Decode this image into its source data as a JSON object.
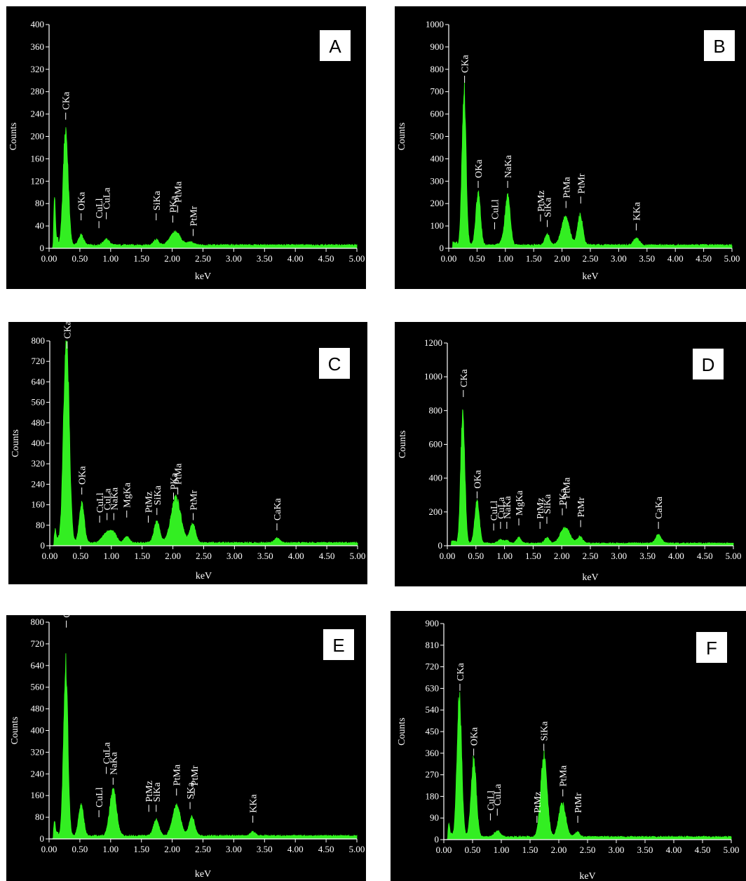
{
  "chart_data": [
    {
      "type": "area",
      "panel": "A",
      "xlabel": "keV",
      "ylabel": "Counts",
      "xlim": [
        0,
        5
      ],
      "ylim": [
        0,
        400
      ],
      "xticks": [
        "0.00",
        "0.50",
        "1.00",
        "1.50",
        "2.00",
        "2.50",
        "3.00",
        "3.50",
        "4.00",
        "4.50",
        "5.00"
      ],
      "yticks": [
        "0",
        "40",
        "80",
        "120",
        "160",
        "200",
        "240",
        "280",
        "320",
        "360",
        "400"
      ],
      "baseline": 4,
      "peaks": [
        {
          "x": 0.09,
          "h": 75,
          "w": 0.012
        },
        {
          "x": 0.27,
          "h": 210,
          "w": 0.04
        },
        {
          "x": 0.52,
          "h": 18,
          "w": 0.04
        },
        {
          "x": 0.93,
          "h": 10,
          "w": 0.05
        },
        {
          "x": 1.74,
          "h": 10,
          "w": 0.04
        },
        {
          "x": 2.05,
          "h": 24,
          "w": 0.08
        },
        {
          "x": 2.3,
          "h": 5,
          "w": 0.05
        }
      ],
      "annotations": [
        {
          "label": "CKa",
          "x": 0.27,
          "y": 230
        },
        {
          "label": "OKa",
          "x": 0.52,
          "y": 50
        },
        {
          "label": "CuLl",
          "x": 0.81,
          "y": 36
        },
        {
          "label": "CuLa",
          "x": 0.93,
          "y": 52
        },
        {
          "label": "SiKa",
          "x": 1.74,
          "y": 50
        },
        {
          "label": "PKa",
          "x": 2.01,
          "y": 46
        },
        {
          "label": "PtMa",
          "x": 2.09,
          "y": 64
        },
        {
          "label": "PtMr",
          "x": 2.34,
          "y": 22
        }
      ]
    },
    {
      "type": "area",
      "panel": "B",
      "xlabel": "keV",
      "ylabel": "Counts",
      "xlim": [
        0,
        5
      ],
      "ylim": [
        0,
        1000
      ],
      "xticks": [
        "0.00",
        "0.50",
        "1.00",
        "1.50",
        "2.00",
        "2.50",
        "3.00",
        "3.50",
        "4.00",
        "4.50",
        "5.00"
      ],
      "yticks": [
        "0",
        "100",
        "200",
        "300",
        "400",
        "500",
        "600",
        "700",
        "800",
        "900",
        "1000"
      ],
      "baseline": 10,
      "peaks": [
        {
          "x": 0.27,
          "h": 700,
          "w": 0.035
        },
        {
          "x": 0.52,
          "h": 235,
          "w": 0.04
        },
        {
          "x": 0.93,
          "h": 15,
          "w": 0.04
        },
        {
          "x": 1.04,
          "h": 220,
          "w": 0.045
        },
        {
          "x": 1.74,
          "h": 50,
          "w": 0.04
        },
        {
          "x": 2.06,
          "h": 125,
          "w": 0.07
        },
        {
          "x": 2.32,
          "h": 135,
          "w": 0.045
        },
        {
          "x": 3.31,
          "h": 30,
          "w": 0.05
        }
      ],
      "annotations": [
        {
          "label": "CKa",
          "x": 0.28,
          "y": 740
        },
        {
          "label": "OKa",
          "x": 0.52,
          "y": 270
        },
        {
          "label": "CuLl",
          "x": 0.81,
          "y": 85
        },
        {
          "label": "NaKa",
          "x": 1.04,
          "y": 270
        },
        {
          "label": "PtMz",
          "x": 1.62,
          "y": 120
        },
        {
          "label": "SiKa",
          "x": 1.74,
          "y": 95
        },
        {
          "label": "PtMa",
          "x": 2.07,
          "y": 180
        },
        {
          "label": "PtMr",
          "x": 2.33,
          "y": 200
        },
        {
          "label": "KKa",
          "x": 3.31,
          "y": 80
        }
      ]
    },
    {
      "type": "area",
      "panel": "C",
      "xlabel": "keV",
      "ylabel": "Counts",
      "xlim": [
        0,
        5
      ],
      "ylim": [
        0,
        800
      ],
      "xticks": [
        "0.00",
        "0.50",
        "1.00",
        "1.50",
        "2.00",
        "2.50",
        "3.00",
        "3.50",
        "4.00",
        "4.50",
        "5.00"
      ],
      "yticks": [
        "0",
        "80",
        "160",
        "240",
        "320",
        "400",
        "480",
        "560",
        "640",
        "720",
        "800"
      ],
      "baseline": 8,
      "peaks": [
        {
          "x": 0.09,
          "h": 40,
          "w": 0.012
        },
        {
          "x": 0.27,
          "h": 800,
          "w": 0.045
        },
        {
          "x": 0.52,
          "h": 155,
          "w": 0.04
        },
        {
          "x": 0.93,
          "h": 40,
          "w": 0.07
        },
        {
          "x": 1.04,
          "h": 30,
          "w": 0.05
        },
        {
          "x": 1.25,
          "h": 25,
          "w": 0.04
        },
        {
          "x": 1.74,
          "h": 85,
          "w": 0.045
        },
        {
          "x": 2.05,
          "h": 175,
          "w": 0.08
        },
        {
          "x": 2.32,
          "h": 75,
          "w": 0.045
        },
        {
          "x": 3.69,
          "h": 20,
          "w": 0.04
        }
      ],
      "annotations": [
        {
          "label": "CKa",
          "x": 0.28,
          "y": 770
        },
        {
          "label": "OKa",
          "x": 0.52,
          "y": 200
        },
        {
          "label": "CuLl",
          "x": 0.81,
          "y": 90
        },
        {
          "label": "CuLa",
          "x": 0.93,
          "y": 100
        },
        {
          "label": "NaKa",
          "x": 1.04,
          "y": 100
        },
        {
          "label": "MgKa",
          "x": 1.25,
          "y": 110
        },
        {
          "label": "PtMz",
          "x": 1.6,
          "y": 90
        },
        {
          "label": "SiKa",
          "x": 1.74,
          "y": 120
        },
        {
          "label": "PKa",
          "x": 2.01,
          "y": 180
        },
        {
          "label": "PtMa",
          "x": 2.08,
          "y": 200
        },
        {
          "label": "PtMr",
          "x": 2.33,
          "y": 100
        },
        {
          "label": "CaKa",
          "x": 3.69,
          "y": 60
        }
      ]
    },
    {
      "type": "area",
      "panel": "D",
      "xlabel": "keV",
      "ylabel": "Counts",
      "xlim": [
        0,
        5
      ],
      "ylim": [
        0,
        1200
      ],
      "xticks": [
        "0.00",
        "0.50",
        "1.00",
        "1.50",
        "2.00",
        "2.50",
        "3.00",
        "3.50",
        "4.00",
        "4.50",
        "5.00"
      ],
      "yticks": [
        "0",
        "200",
        "400",
        "600",
        "800",
        "1000",
        "1200"
      ],
      "baseline": 10,
      "peaks": [
        {
          "x": 0.27,
          "h": 800,
          "w": 0.035
        },
        {
          "x": 0.52,
          "h": 250,
          "w": 0.04
        },
        {
          "x": 0.93,
          "h": 20,
          "w": 0.05
        },
        {
          "x": 1.04,
          "h": 15,
          "w": 0.04
        },
        {
          "x": 1.25,
          "h": 35,
          "w": 0.04
        },
        {
          "x": 1.74,
          "h": 35,
          "w": 0.04
        },
        {
          "x": 2.06,
          "h": 95,
          "w": 0.08
        },
        {
          "x": 2.32,
          "h": 40,
          "w": 0.045
        },
        {
          "x": 3.69,
          "h": 50,
          "w": 0.05
        }
      ],
      "annotations": [
        {
          "label": "CKa",
          "x": 0.28,
          "y": 880
        },
        {
          "label": "OKa",
          "x": 0.52,
          "y": 280
        },
        {
          "label": "CuLl",
          "x": 0.81,
          "y": 90
        },
        {
          "label": "CuLa",
          "x": 0.93,
          "y": 100
        },
        {
          "label": "NaKa",
          "x": 1.04,
          "y": 100
        },
        {
          "label": "MgKa",
          "x": 1.25,
          "y": 120
        },
        {
          "label": "PtMz",
          "x": 1.62,
          "y": 100
        },
        {
          "label": "SiKa",
          "x": 1.74,
          "y": 130
        },
        {
          "label": "PKa",
          "x": 2.01,
          "y": 180
        },
        {
          "label": "PtMa",
          "x": 2.08,
          "y": 220
        },
        {
          "label": "PtMr",
          "x": 2.33,
          "y": 110
        },
        {
          "label": "CaKa",
          "x": 3.69,
          "y": 100
        }
      ]
    },
    {
      "type": "area",
      "panel": "E",
      "xlabel": "keV",
      "ylabel": "Counts",
      "xlim": [
        0,
        5
      ],
      "ylim": [
        0,
        800
      ],
      "xticks": [
        "0.00",
        "0.50",
        "1.00",
        "1.50",
        "2.00",
        "2.50",
        "3.00",
        "3.50",
        "4.00",
        "4.50",
        "5.00"
      ],
      "yticks": [
        "0",
        "80",
        "160",
        "240",
        "320",
        "400",
        "480",
        "560",
        "640",
        "720",
        "800"
      ],
      "baseline": 8,
      "peaks": [
        {
          "x": 0.09,
          "h": 40,
          "w": 0.012
        },
        {
          "x": 0.27,
          "h": 630,
          "w": 0.035
        },
        {
          "x": 0.52,
          "h": 115,
          "w": 0.04
        },
        {
          "x": 1.04,
          "h": 170,
          "w": 0.055
        },
        {
          "x": 1.74,
          "h": 60,
          "w": 0.045
        },
        {
          "x": 2.07,
          "h": 110,
          "w": 0.065
        },
        {
          "x": 2.32,
          "h": 70,
          "w": 0.045
        },
        {
          "x": 3.31,
          "h": 15,
          "w": 0.04
        }
      ],
      "annotations": [
        {
          "label": "CKa",
          "x": 0.28,
          "y": 780
        },
        {
          "label": "CuLl",
          "x": 0.81,
          "y": 80
        },
        {
          "label": "CuLa",
          "x": 0.93,
          "y": 240
        },
        {
          "label": "NaKa",
          "x": 1.04,
          "y": 200
        },
        {
          "label": "PtMz",
          "x": 1.62,
          "y": 100
        },
        {
          "label": "SiKa",
          "x": 1.74,
          "y": 100
        },
        {
          "label": "PtMa",
          "x": 2.07,
          "y": 160
        },
        {
          "label": "SKa",
          "x": 2.29,
          "y": 110
        },
        {
          "label": "PtMr",
          "x": 2.36,
          "y": 160
        },
        {
          "label": "KKa",
          "x": 3.31,
          "y": 60
        }
      ]
    },
    {
      "type": "area",
      "panel": "F",
      "xlabel": "keV",
      "ylabel": "Counts",
      "xlim": [
        0,
        5
      ],
      "ylim": [
        0,
        900
      ],
      "xticks": [
        "0.00",
        "0.50",
        "1.00",
        "1.50",
        "2.00",
        "2.50",
        "3.00",
        "3.50",
        "4.00",
        "4.50",
        "5.00"
      ],
      "yticks": [
        "0",
        "90",
        "180",
        "270",
        "360",
        "450",
        "540",
        "630",
        "720",
        "810",
        "900"
      ],
      "baseline": 8,
      "peaks": [
        {
          "x": 0.09,
          "h": 45,
          "w": 0.012
        },
        {
          "x": 0.27,
          "h": 575,
          "w": 0.04
        },
        {
          "x": 0.52,
          "h": 320,
          "w": 0.045
        },
        {
          "x": 0.93,
          "h": 25,
          "w": 0.05
        },
        {
          "x": 1.74,
          "h": 335,
          "w": 0.055
        },
        {
          "x": 2.06,
          "h": 140,
          "w": 0.06
        },
        {
          "x": 2.32,
          "h": 20,
          "w": 0.04
        }
      ],
      "annotations": [
        {
          "label": "CKa",
          "x": 0.28,
          "y": 620
        },
        {
          "label": "OKa",
          "x": 0.52,
          "y": 350
        },
        {
          "label": "CuLl",
          "x": 0.81,
          "y": 80
        },
        {
          "label": "CuLa",
          "x": 0.93,
          "y": 100
        },
        {
          "label": "PtMz",
          "x": 1.62,
          "y": 70
        },
        {
          "label": "SiKa",
          "x": 1.74,
          "y": 370
        },
        {
          "label": "PtMa",
          "x": 2.07,
          "y": 180
        },
        {
          "label": "PtMr",
          "x": 2.33,
          "y": 70
        }
      ]
    }
  ]
}
